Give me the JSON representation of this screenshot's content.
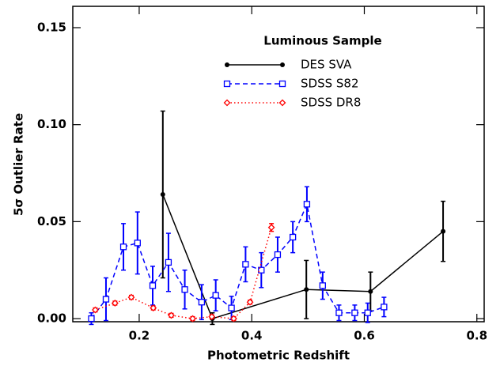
{
  "chart_data": {
    "type": "errorbar",
    "xlabel": "Photometric Redshift",
    "ylabel": "5σ Outlier Rate",
    "legend_title": "Luminous Sample",
    "xlim": [
      0.082,
      0.813
    ],
    "ylim": [
      -0.0016,
      0.161
    ],
    "xticks": [
      0.2,
      0.4,
      0.6,
      0.8
    ],
    "yticks": [
      {
        "value": 0,
        "label": "0.00"
      },
      {
        "value": 0.05,
        "label": "0.05"
      },
      {
        "value": 0.1,
        "label": "0.10"
      },
      {
        "value": 0.15,
        "label": "0.15"
      }
    ],
    "series": [
      {
        "name": "DES SVA",
        "color": "#000000",
        "marker": "circle",
        "linestyle": "solid",
        "x": [
          0.242,
          0.33,
          0.497,
          0.611,
          0.74
        ],
        "values": [
          0.064,
          0.0,
          0.015,
          0.014,
          0.045
        ],
        "errors": [
          0.043,
          0.003,
          0.015,
          0.01,
          0.0155
        ]
      },
      {
        "name": "SDSS S82",
        "color": "#0000ff",
        "marker": "square",
        "linestyle": "dashed",
        "x": [
          0.115,
          0.141,
          0.172,
          0.197,
          0.224,
          0.252,
          0.281,
          0.311,
          0.336,
          0.364,
          0.389,
          0.417,
          0.446,
          0.473,
          0.498,
          0.526,
          0.555,
          0.583,
          0.606,
          0.635
        ],
        "values": [
          0.0,
          0.01,
          0.037,
          0.039,
          0.017,
          0.029,
          0.015,
          0.0085,
          0.012,
          0.0055,
          0.028,
          0.025,
          0.033,
          0.042,
          0.059,
          0.017,
          0.003,
          0.003,
          0.003,
          0.006
        ],
        "errors": [
          0.003,
          0.011,
          0.012,
          0.016,
          0.01,
          0.015,
          0.01,
          0.009,
          0.008,
          0.006,
          0.009,
          0.009,
          0.009,
          0.008,
          0.009,
          0.007,
          0.004,
          0.004,
          0.005,
          0.005
        ]
      },
      {
        "name": "SDSS DR8",
        "color": "#ff0000",
        "marker": "diamond",
        "linestyle": "dotted",
        "x": [
          0.122,
          0.157,
          0.186,
          0.225,
          0.257,
          0.295,
          0.329,
          0.368,
          0.397,
          0.435
        ],
        "values": [
          0.0045,
          0.008,
          0.011,
          0.0055,
          0.0017,
          0.0,
          0.001,
          0.0,
          0.0085,
          0.047
        ],
        "errors": [
          0.001,
          0.001,
          0.001,
          0.001,
          0.001,
          0.001,
          0.001,
          0.001,
          0.001,
          0.002
        ]
      }
    ]
  }
}
